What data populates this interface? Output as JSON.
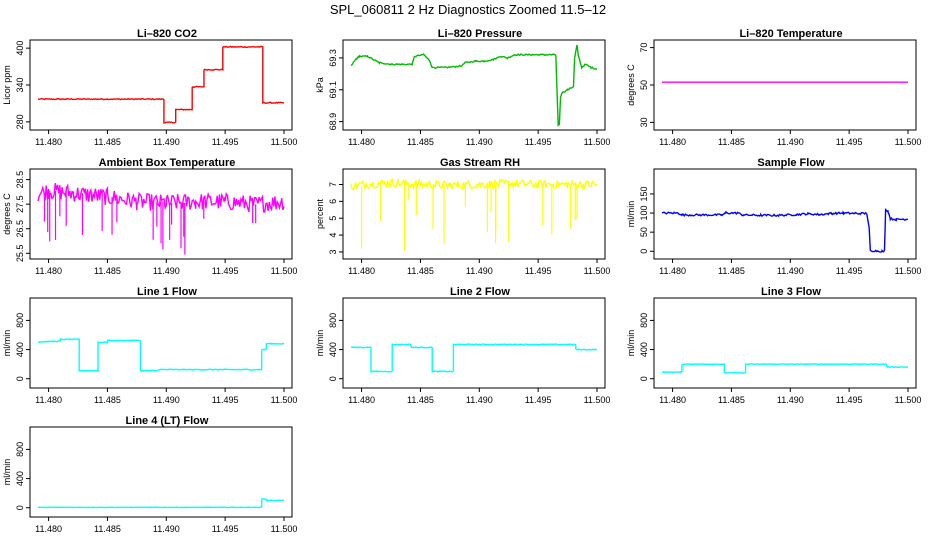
{
  "figure_title": "SPL_060811  2 Hz Diagnostics Zoomed 11.5–12",
  "chart_data": [
    {
      "type": "line",
      "title": "Li–820 CO2",
      "ylabel": "Licor ppm",
      "color": "#ff0000",
      "xlim": [
        11.4791,
        11.5
      ],
      "ylim": [
        270,
        410
      ],
      "x_ticks": [
        "11.480",
        "11.485",
        "11.490",
        "11.495",
        "11.500"
      ],
      "y_ticks": [
        "280",
        "340",
        "400"
      ],
      "y_tick_values": [
        280,
        340,
        400
      ],
      "noise": 0.8,
      "x": [
        11.4791,
        11.4898,
        11.4898,
        11.4908,
        11.4908,
        11.4922,
        11.4922,
        11.4932,
        11.4932,
        11.4948,
        11.4948,
        11.4982,
        11.4982,
        11.5
      ],
      "y": [
        317,
        317,
        279,
        279,
        300,
        300,
        337,
        337,
        365,
        365,
        402,
        402,
        311,
        311
      ]
    },
    {
      "type": "line",
      "title": "Li–820 Pressure",
      "ylabel": "kPa",
      "color": "#00bb00",
      "xlim": [
        11.4791,
        11.5
      ],
      "ylim": [
        68.86,
        69.4
      ],
      "x_ticks": [
        "11.480",
        "11.485",
        "11.490",
        "11.495",
        "11.500"
      ],
      "y_ticks": [
        "68.9",
        "69.1",
        "69.3"
      ],
      "y_tick_values": [
        68.9,
        69.1,
        69.3
      ],
      "noise": 0.004,
      "x": [
        11.4791,
        11.4795,
        11.4798,
        11.4805,
        11.4815,
        11.4825,
        11.4835,
        11.4843,
        11.4845,
        11.4853,
        11.4858,
        11.486,
        11.4872,
        11.4885,
        11.4888,
        11.4897,
        11.4904,
        11.4912,
        11.4918,
        11.4924,
        11.493,
        11.4935,
        11.4945,
        11.4955,
        11.4965,
        11.4966,
        11.4967,
        11.4968,
        11.4969,
        11.497,
        11.4975,
        11.498,
        11.4981,
        11.4983,
        11.4984,
        11.4987,
        11.499,
        11.4995,
        11.5
      ],
      "y": [
        69.25,
        69.29,
        69.31,
        69.31,
        69.27,
        69.26,
        69.26,
        69.26,
        69.31,
        69.32,
        69.28,
        69.24,
        69.24,
        69.25,
        69.27,
        69.28,
        69.28,
        69.29,
        69.31,
        69.3,
        69.32,
        69.32,
        69.32,
        69.32,
        69.32,
        69.1,
        68.88,
        68.88,
        69.05,
        69.08,
        69.1,
        69.12,
        69.3,
        69.38,
        69.32,
        69.24,
        69.26,
        69.24,
        69.23
      ]
    },
    {
      "type": "line",
      "title": "Li–820 Temperature",
      "ylabel": "degrees C",
      "color": "#ff00ff",
      "xlim": [
        11.4791,
        11.5
      ],
      "ylim": [
        27,
        73
      ],
      "x_ticks": [
        "11.480",
        "11.485",
        "11.490",
        "11.495",
        "11.500"
      ],
      "y_ticks": [
        "30",
        "50",
        "70"
      ],
      "y_tick_values": [
        30,
        50,
        70
      ],
      "noise": 0,
      "x": [
        11.4791,
        11.5
      ],
      "y": [
        51.5,
        51.5
      ]
    },
    {
      "type": "line",
      "title": "Ambient Box Temperature",
      "ylabel": "degrees C",
      "color": "#ff00ff",
      "xlim": [
        11.4791,
        11.5
      ],
      "ylim": [
        25.35,
        28.85
      ],
      "x_ticks": [
        "11.480",
        "11.485",
        "11.490",
        "11.495",
        "11.500"
      ],
      "y_ticks": [
        "25.5",
        "26.5",
        "27.5",
        "28.5"
      ],
      "y_tick_values": [
        25.5,
        26.5,
        27.5,
        28.5
      ],
      "noise": 0.35,
      "x": [
        11.4791,
        11.48,
        11.482,
        11.485,
        11.4875,
        11.49,
        11.4925,
        11.495,
        11.4975,
        11.5
      ],
      "y": [
        27.9,
        28.05,
        27.95,
        27.8,
        27.6,
        27.55,
        27.6,
        27.6,
        27.5,
        27.6
      ]
    },
    {
      "type": "line",
      "title": "Gas Stream RH",
      "ylabel": "percent",
      "color": "#ffff00",
      "xlim": [
        11.4791,
        11.5
      ],
      "ylim": [
        2.7,
        7.8
      ],
      "x_ticks": [
        "11.480",
        "11.485",
        "11.490",
        "11.495",
        "11.500"
      ],
      "y_ticks": [
        "3",
        "4",
        "5",
        "6",
        "7"
      ],
      "y_tick_values": [
        3,
        4,
        5,
        6,
        7
      ],
      "noise": 0.25,
      "x": [
        11.4791,
        11.48,
        11.4825,
        11.485,
        11.4875,
        11.49,
        11.4925,
        11.495,
        11.4975,
        11.5
      ],
      "y": [
        6.9,
        7.0,
        7.1,
        7.0,
        6.95,
        7.0,
        7.05,
        7.0,
        7.0,
        7.0
      ]
    },
    {
      "type": "line",
      "title": "Sample Flow",
      "ylabel": "ml/min",
      "color": "#0000ff",
      "xlim": [
        11.4791,
        11.5
      ],
      "ylim": [
        -15,
        210
      ],
      "x_ticks": [
        "11.480",
        "11.485",
        "11.490",
        "11.495",
        "11.500"
      ],
      "y_ticks": [
        "0",
        "50",
        "100",
        "150"
      ],
      "y_tick_values": [
        0,
        50,
        100,
        150
      ],
      "noise": 2.5,
      "x": [
        11.4791,
        11.4805,
        11.4808,
        11.4842,
        11.4845,
        11.4855,
        11.486,
        11.4875,
        11.489,
        11.4905,
        11.4915,
        11.4925,
        11.4935,
        11.4945,
        11.4955,
        11.4965,
        11.4967,
        11.4968,
        11.4978,
        11.498,
        11.4981,
        11.4983,
        11.4985,
        11.499,
        11.4995,
        11.5
      ],
      "y": [
        100,
        100,
        95,
        95,
        100,
        100,
        95,
        94,
        94,
        96,
        98,
        96,
        99,
        100,
        99,
        99,
        60,
        2,
        0,
        0,
        110,
        105,
        85,
        83,
        84,
        84
      ]
    },
    {
      "type": "line",
      "title": "Line 1 Flow",
      "ylabel": "ml/min",
      "color": "#00ffff",
      "xlim": [
        11.4791,
        11.5
      ],
      "ylim": [
        -100,
        1080
      ],
      "x_ticks": [
        "11.480",
        "11.485",
        "11.490",
        "11.495",
        "11.500"
      ],
      "y_ticks": [
        "0",
        "400",
        "800"
      ],
      "y_tick_values": [
        0,
        400,
        800
      ],
      "noise": 6,
      "x": [
        11.4791,
        11.481,
        11.481,
        11.4826,
        11.4826,
        11.4842,
        11.4842,
        11.485,
        11.485,
        11.4878,
        11.4878,
        11.4893,
        11.4893,
        11.4981,
        11.4981,
        11.4985,
        11.4985,
        11.5
      ],
      "y": [
        505,
        515,
        540,
        540,
        110,
        110,
        500,
        500,
        525,
        525,
        110,
        110,
        125,
        125,
        400,
        400,
        480,
        480
      ]
    },
    {
      "type": "line",
      "title": "Line 2 Flow",
      "ylabel": "ml/min",
      "color": "#00ffff",
      "xlim": [
        11.4791,
        11.5
      ],
      "ylim": [
        -100,
        1080
      ],
      "x_ticks": [
        "11.480",
        "11.485",
        "11.490",
        "11.495",
        "11.500"
      ],
      "y_ticks": [
        "0",
        "400",
        "800"
      ],
      "y_tick_values": [
        0,
        400,
        800
      ],
      "noise": 6,
      "x": [
        11.4791,
        11.4808,
        11.4808,
        11.4826,
        11.4826,
        11.4842,
        11.4842,
        11.486,
        11.486,
        11.4878,
        11.4878,
        11.4982,
        11.4982,
        11.5
      ],
      "y": [
        430,
        430,
        100,
        100,
        470,
        470,
        430,
        430,
        100,
        100,
        470,
        470,
        400,
        400
      ]
    },
    {
      "type": "line",
      "title": "Line 3 Flow",
      "ylabel": "ml/min",
      "color": "#00ffff",
      "xlim": [
        11.4791,
        11.5
      ],
      "ylim": [
        -100,
        1080
      ],
      "x_ticks": [
        "11.480",
        "11.485",
        "11.490",
        "11.495",
        "11.500"
      ],
      "y_ticks": [
        "0",
        "400",
        "800"
      ],
      "y_tick_values": [
        0,
        400,
        800
      ],
      "noise": 4,
      "x": [
        11.4791,
        11.4808,
        11.4808,
        11.4844,
        11.4844,
        11.4862,
        11.4862,
        11.4982,
        11.4982,
        11.5
      ],
      "y": [
        90,
        90,
        200,
        200,
        80,
        80,
        200,
        200,
        160,
        160
      ]
    },
    {
      "type": "line",
      "title": "Line 4 (LT) Flow",
      "ylabel": "ml/min",
      "color": "#00ffff",
      "xlim": [
        11.4791,
        11.5
      ],
      "ylim": [
        -100,
        1080
      ],
      "x_ticks": [
        "11.480",
        "11.485",
        "11.490",
        "11.495",
        "11.500"
      ],
      "y_ticks": [
        "0",
        "400",
        "800"
      ],
      "y_tick_values": [
        0,
        400,
        800
      ],
      "noise": 3,
      "x": [
        11.4791,
        11.4981,
        11.4981,
        11.4985,
        11.4985,
        11.5
      ],
      "y": [
        5,
        5,
        120,
        120,
        100,
        100
      ]
    }
  ]
}
